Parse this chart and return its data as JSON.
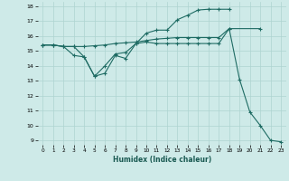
{
  "xlabel": "Humidex (Indice chaleur)",
  "xlim": [
    -0.5,
    23.5
  ],
  "ylim": [
    8.7,
    18.3
  ],
  "yticks": [
    9,
    10,
    11,
    12,
    13,
    14,
    15,
    16,
    17,
    18
  ],
  "xticks": [
    0,
    1,
    2,
    3,
    4,
    5,
    6,
    7,
    8,
    9,
    10,
    11,
    12,
    13,
    14,
    15,
    16,
    17,
    18,
    19,
    20,
    21,
    22,
    23
  ],
  "bg_color": "#ceeae8",
  "grid_color": "#aed4d0",
  "line_color": "#1e6b63",
  "curves": {
    "curve1_x": [
      0,
      1,
      2,
      3,
      4,
      5,
      6,
      7,
      8,
      9,
      10,
      11,
      12,
      13,
      14,
      15,
      16,
      17,
      18,
      19,
      20,
      21,
      22,
      23
    ],
    "curve1_y": [
      15.4,
      15.4,
      15.3,
      15.3,
      14.6,
      13.3,
      13.5,
      14.7,
      14.5,
      15.5,
      15.6,
      15.5,
      15.5,
      15.5,
      15.5,
      15.5,
      15.5,
      15.5,
      16.5,
      13.1,
      10.9,
      10.0,
      9.0,
      8.9
    ],
    "curve2_x": [
      0,
      1,
      2,
      3,
      4,
      5,
      6,
      7,
      8,
      9,
      10,
      11,
      12,
      13,
      14,
      15,
      16,
      17,
      18,
      21
    ],
    "curve2_y": [
      15.4,
      15.4,
      15.3,
      15.3,
      15.3,
      15.35,
      15.4,
      15.5,
      15.55,
      15.6,
      15.7,
      15.8,
      15.85,
      15.9,
      15.9,
      15.9,
      15.9,
      15.9,
      16.5,
      16.5
    ],
    "curve3_x": [
      0,
      1,
      2,
      3,
      4,
      5,
      6,
      7,
      8,
      9,
      10,
      11,
      12,
      13,
      14,
      15,
      16,
      17,
      18
    ],
    "curve3_y": [
      15.4,
      15.4,
      15.3,
      14.7,
      14.6,
      13.3,
      14.0,
      14.8,
      14.9,
      15.5,
      16.2,
      16.4,
      16.4,
      17.1,
      17.4,
      17.75,
      17.8,
      17.8,
      17.8
    ]
  }
}
